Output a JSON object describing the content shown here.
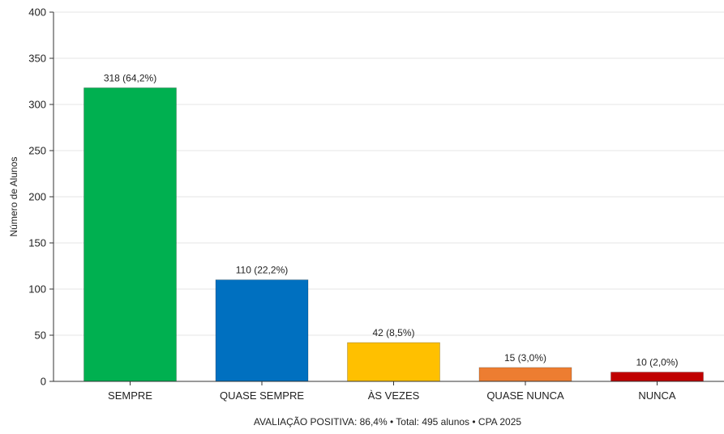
{
  "chart_data": {
    "type": "bar",
    "categories": [
      "SEMPRE",
      "QUASE SEMPRE",
      "ÀS VEZES",
      "QUASE NUNCA",
      "NUNCA"
    ],
    "values": [
      318,
      110,
      42,
      15,
      10
    ],
    "data_labels": [
      "318 (64,2%)",
      "110 (22,2%)",
      "42 (8,5%)",
      "15 (3,0%)",
      "10 (2,0%)"
    ],
    "colors": [
      "#00B050",
      "#0070C0",
      "#FFC000",
      "#ED7D31",
      "#C00000"
    ],
    "title": "",
    "xlabel": "AVALIAÇÃO POSITIVA: 86,4% • Total: 495 alunos • CPA 2025",
    "ylabel": "Número de Alunos",
    "ylim": [
      0,
      400
    ],
    "yticks": [
      0,
      50,
      100,
      150,
      200,
      250,
      300,
      350,
      400
    ],
    "grid": true,
    "legend": "none"
  }
}
